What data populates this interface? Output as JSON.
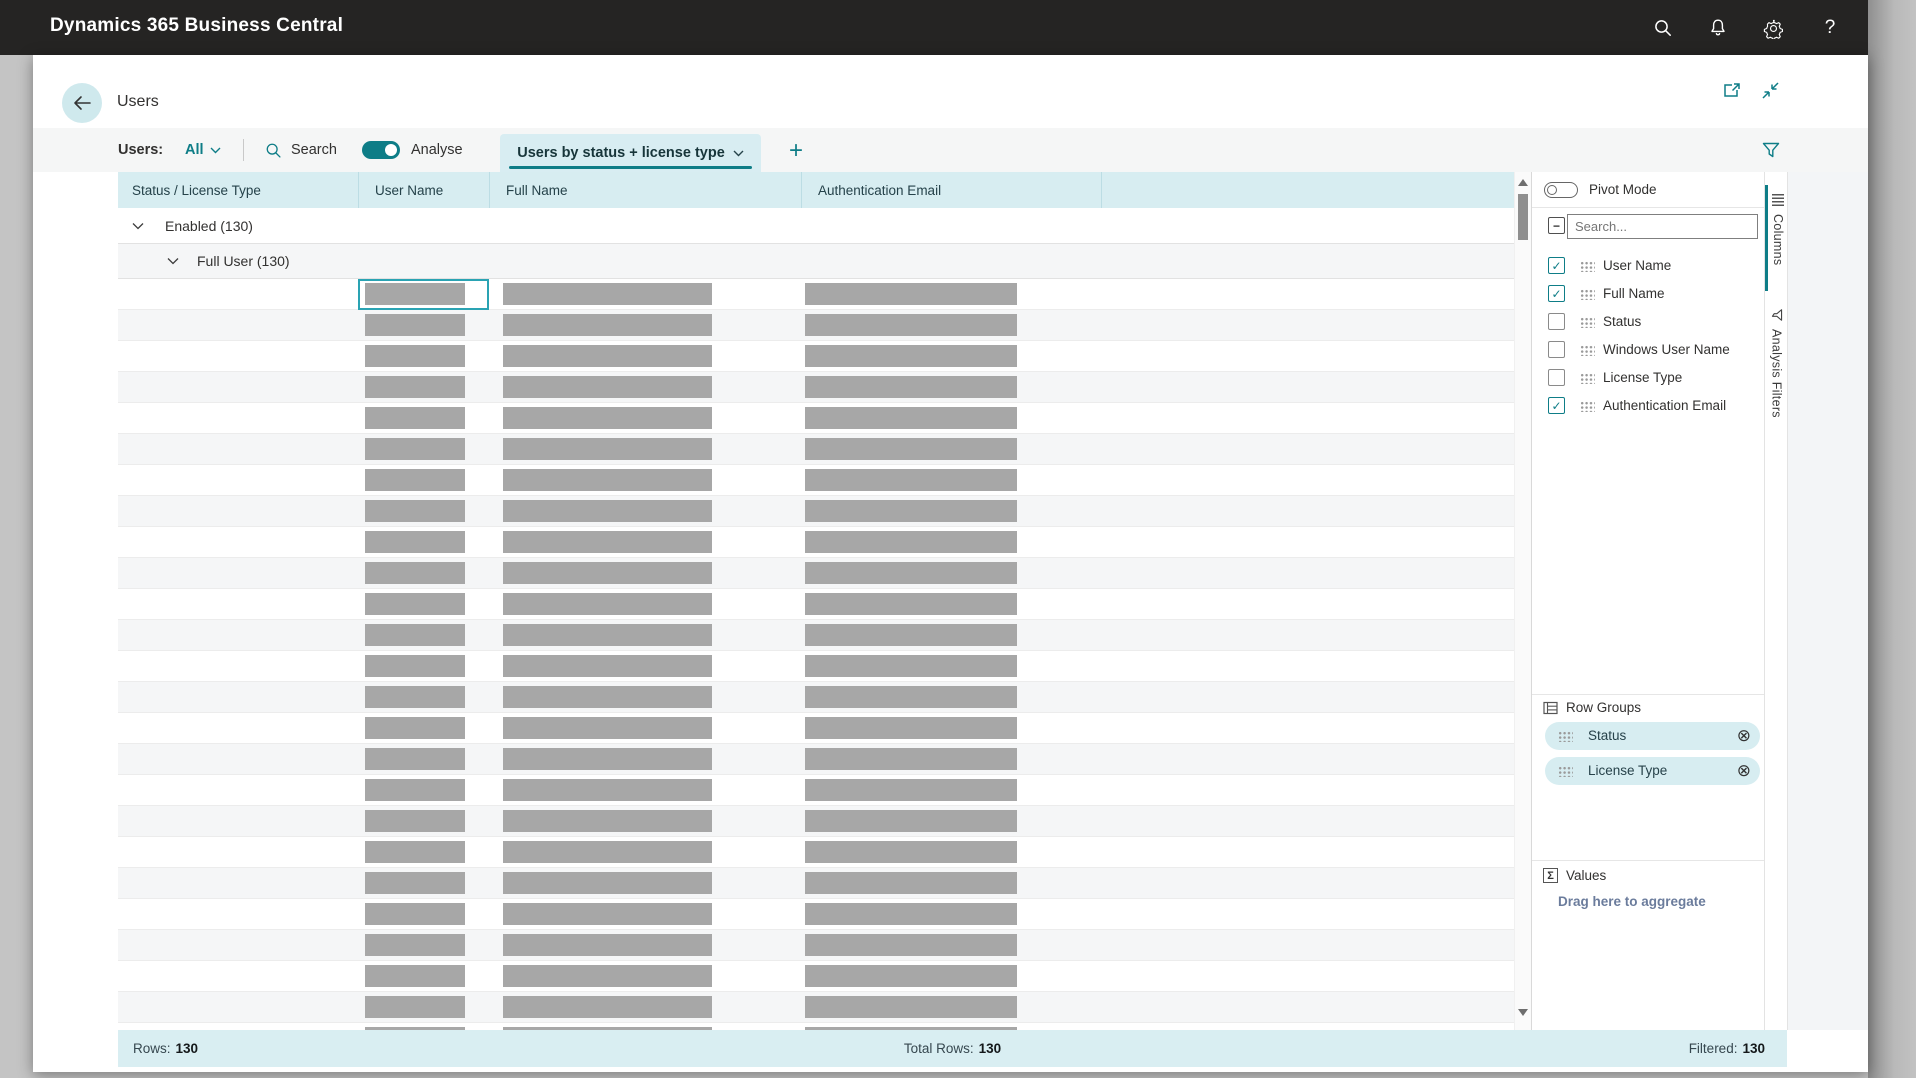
{
  "app": {
    "title": "Dynamics 365 Business Central"
  },
  "topbar_icons": [
    "search-icon",
    "bell-icon",
    "gear-icon",
    "help-icon"
  ],
  "help_glyph": "?",
  "page": {
    "title": "Users"
  },
  "toolbar": {
    "filter_label": "Users:",
    "filter_value": "All",
    "search_label": "Search",
    "analyse_label": "Analyse",
    "analyse_on": true,
    "tab_label": "Users by status + license type",
    "add_label": "+"
  },
  "table": {
    "columns": [
      "Status / License Type",
      "User Name",
      "Full Name",
      "Authentication Email"
    ],
    "groups": [
      {
        "label": "Enabled (130)",
        "level": 1
      },
      {
        "label": "Full User (130)",
        "level": 2
      }
    ],
    "placeholder_row_count": 25,
    "selected_row_index": 0
  },
  "panel": {
    "pivot_label": "Pivot Mode",
    "pivot_on": false,
    "select_all_glyph": "−",
    "check_glyph": "✓",
    "search_placeholder": "Search...",
    "fields": [
      {
        "label": "User Name",
        "checked": true
      },
      {
        "label": "Full Name",
        "checked": true
      },
      {
        "label": "Status",
        "checked": false
      },
      {
        "label": "Windows User Name",
        "checked": false
      },
      {
        "label": "License Type",
        "checked": false
      },
      {
        "label": "Authentication Email",
        "checked": true
      }
    ],
    "row_groups": {
      "title": "Row Groups",
      "items": [
        "Status",
        "License Type"
      ],
      "remove_glyph": "⊗"
    },
    "values": {
      "title": "Values",
      "sigma_glyph": "Σ",
      "hint": "Drag here to aggregate"
    },
    "tabs": [
      {
        "label": "Columns",
        "active": true
      },
      {
        "label": "Analysis Filters",
        "active": false
      }
    ]
  },
  "status_bar": {
    "rows_label": "Rows:",
    "rows_value": "130",
    "total_label": "Total Rows:",
    "total_value": "130",
    "filtered_label": "Filtered:",
    "filtered_value": "130"
  },
  "colors": {
    "accent": "#0e7d87",
    "light_cyan": "#d8edf2",
    "selection": "#2aa3b3",
    "topbar": "#252423",
    "placeholder_bar": "#a7a7a7"
  }
}
